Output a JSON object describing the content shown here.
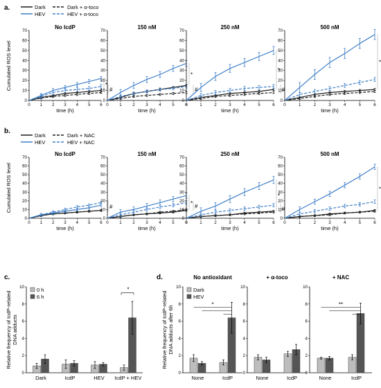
{
  "colors": {
    "dark": "#1a1a1a",
    "hev": "#3f7fc8",
    "bar_light": "#bdbdbd",
    "bar_dark": "#555555"
  },
  "figure": {
    "panels": {
      "a": "a.",
      "b": "b.",
      "c": "c.",
      "d": "d."
    },
    "legend_a": [
      "Dark",
      "Dark + α-toco",
      "HEV",
      "HEV + α-toco"
    ],
    "legend_b": [
      "Dark",
      "Dark + NAC",
      "HEV",
      "HEV + NAC"
    ],
    "legend_c": [
      "0 h",
      "6 h"
    ],
    "legend_d": [
      "Dark",
      "HEV"
    ],
    "ros_ylabel": "Cumulated ROS level",
    "ros_xlabel": "time (h)",
    "c_ylabel": [
      "Relative frequency of IcdP-related",
      "DNA adducts"
    ],
    "d_ylabel": [
      "Relative frequency of IcdP-related",
      "DNA adducts after 6h"
    ],
    "sig_star": "*",
    "sig_double_star": "**",
    "sig_hash": "#"
  },
  "chart_data": [
    {
      "type": "line",
      "row": "a",
      "title": "No IcdP",
      "x": [
        0,
        1,
        2,
        3,
        4,
        5,
        6
      ],
      "xlim": [
        0,
        6
      ],
      "ylim": [
        0,
        70
      ],
      "yticks": [
        0,
        10,
        20,
        30,
        40,
        50,
        60,
        70
      ],
      "series": [
        {
          "name": "Dark",
          "values": [
            0,
            3,
            5,
            7,
            8,
            9,
            10
          ],
          "err": 1,
          "color": "dark",
          "dash": false
        },
        {
          "name": "Dark + α-toco",
          "values": [
            0,
            2.5,
            4,
            5,
            6,
            7,
            8
          ],
          "err": 1,
          "color": "dark",
          "dash": true
        },
        {
          "name": "HEV",
          "values": [
            0,
            5,
            10,
            13,
            16,
            19,
            22
          ],
          "err": 2,
          "color": "hev",
          "dash": false
        },
        {
          "name": "HEV + α-toco",
          "values": [
            0,
            4,
            8,
            10,
            11,
            12,
            14
          ],
          "err": 2,
          "color": "hev",
          "dash": true
        }
      ],
      "annotations": [
        "*",
        "#"
      ]
    },
    {
      "type": "line",
      "row": "a",
      "title": "150 nM",
      "x": [
        0,
        1,
        2,
        3,
        4,
        5,
        6
      ],
      "xlim": [
        0,
        6
      ],
      "ylim": [
        0,
        70
      ],
      "yticks": [
        0,
        10,
        20,
        30,
        40,
        50,
        60,
        70
      ],
      "series": [
        {
          "name": "Dark",
          "values": [
            0,
            3,
            7,
            9,
            11,
            13,
            15
          ],
          "err": 1,
          "color": "dark",
          "dash": false
        },
        {
          "name": "Dark + α-toco",
          "values": [
            0,
            2,
            4,
            5,
            6,
            7,
            8
          ],
          "err": 1,
          "color": "dark",
          "dash": true
        },
        {
          "name": "HEV",
          "values": [
            0,
            8,
            15,
            21,
            26,
            32,
            37
          ],
          "err": 3,
          "color": "hev",
          "dash": false
        },
        {
          "name": "HEV + α-toco",
          "values": [
            0,
            4,
            7,
            9,
            11,
            12,
            14
          ],
          "err": 1.5,
          "color": "hev",
          "dash": true
        }
      ],
      "annotations": [
        "*",
        "#"
      ]
    },
    {
      "type": "line",
      "row": "a",
      "title": "250 nM",
      "x": [
        0,
        1,
        2,
        3,
        4,
        5,
        6
      ],
      "xlim": [
        0,
        6
      ],
      "ylim": [
        0,
        70
      ],
      "yticks": [
        0,
        10,
        20,
        30,
        40,
        50,
        60,
        70
      ],
      "series": [
        {
          "name": "Dark",
          "values": [
            0,
            3,
            5,
            7,
            8,
            9,
            11
          ],
          "err": 1,
          "color": "dark",
          "dash": false
        },
        {
          "name": "Dark + α-toco",
          "values": [
            0,
            2,
            4,
            5,
            6,
            7,
            8
          ],
          "err": 1,
          "color": "dark",
          "dash": true
        },
        {
          "name": "HEV",
          "values": [
            0,
            13,
            24,
            32,
            38,
            44,
            50
          ],
          "err": 4,
          "color": "hev",
          "dash": false
        },
        {
          "name": "HEV + α-toco",
          "values": [
            0,
            5,
            8,
            10,
            12,
            13,
            14
          ],
          "err": 2,
          "color": "hev",
          "dash": true
        }
      ],
      "annotations": [
        "*",
        "#"
      ]
    },
    {
      "type": "line",
      "row": "a",
      "title": "500 nM",
      "x": [
        0,
        1,
        2,
        3,
        4,
        5,
        6
      ],
      "xlim": [
        0,
        6
      ],
      "ylim": [
        0,
        70
      ],
      "yticks": [
        0,
        10,
        20,
        30,
        40,
        50,
        60,
        70
      ],
      "series": [
        {
          "name": "Dark",
          "values": [
            0,
            3,
            6,
            8,
            9,
            10,
            11
          ],
          "err": 1,
          "color": "dark",
          "dash": false
        },
        {
          "name": "Dark + α-toco",
          "values": [
            0,
            2,
            4,
            6,
            7,
            8,
            9
          ],
          "err": 1,
          "color": "dark",
          "dash": true
        },
        {
          "name": "HEV",
          "values": [
            0,
            13,
            26,
            38,
            47,
            57,
            66
          ],
          "err": 5,
          "color": "hev",
          "dash": false
        },
        {
          "name": "HEV + α-toco",
          "values": [
            0,
            6,
            9,
            12,
            15,
            18,
            21
          ],
          "err": 2,
          "color": "hev",
          "dash": true
        }
      ],
      "annotations": [
        "*",
        "#"
      ]
    },
    {
      "type": "line",
      "row": "b",
      "title": "No IcdP",
      "x": [
        0,
        1,
        2,
        3,
        4,
        5,
        6
      ],
      "xlim": [
        0,
        6
      ],
      "ylim": [
        0,
        70
      ],
      "yticks": [
        0,
        10,
        20,
        30,
        40,
        50,
        60,
        70
      ],
      "series": [
        {
          "name": "Dark",
          "values": [
            0,
            3,
            5,
            6,
            7,
            8,
            9
          ],
          "err": 1,
          "color": "dark",
          "dash": false
        },
        {
          "name": "Dark + NAC",
          "values": [
            0,
            3,
            5,
            6,
            7,
            8,
            9
          ],
          "err": 1,
          "color": "dark",
          "dash": true
        },
        {
          "name": "HEV",
          "values": [
            0,
            4,
            6,
            8,
            10,
            12,
            15
          ],
          "err": 1.5,
          "color": "hev",
          "dash": false
        },
        {
          "name": "HEV + NAC",
          "values": [
            0,
            4,
            7,
            10,
            13,
            15,
            18
          ],
          "err": 1.5,
          "color": "hev",
          "dash": true
        }
      ],
      "annotations": [
        "#"
      ]
    },
    {
      "type": "line",
      "row": "b",
      "title": "150 nM",
      "x": [
        0,
        1,
        2,
        3,
        4,
        5,
        6
      ],
      "xlim": [
        0,
        6
      ],
      "ylim": [
        0,
        70
      ],
      "yticks": [
        0,
        10,
        20,
        30,
        40,
        50,
        60,
        70
      ],
      "series": [
        {
          "name": "Dark",
          "values": [
            0,
            2,
            4,
            5,
            6,
            7,
            9
          ],
          "err": 1,
          "color": "dark",
          "dash": false
        },
        {
          "name": "Dark + NAC",
          "values": [
            0,
            2,
            4,
            5,
            7,
            8,
            10
          ],
          "err": 1,
          "color": "dark",
          "dash": true
        },
        {
          "name": "HEV",
          "values": [
            0,
            7,
            10,
            14,
            18,
            22,
            26
          ],
          "err": 3,
          "color": "hev",
          "dash": false
        },
        {
          "name": "HEV + NAC",
          "values": [
            0,
            4,
            7,
            10,
            13,
            15,
            18
          ],
          "err": 2,
          "color": "hev",
          "dash": true
        }
      ],
      "annotations": [
        "*",
        "#"
      ]
    },
    {
      "type": "line",
      "row": "b",
      "title": "250 nM",
      "x": [
        0,
        1,
        2,
        3,
        4,
        5,
        6
      ],
      "xlim": [
        0,
        6
      ],
      "ylim": [
        0,
        70
      ],
      "yticks": [
        0,
        10,
        20,
        30,
        40,
        50,
        60,
        70
      ],
      "series": [
        {
          "name": "Dark",
          "values": [
            0,
            2,
            3,
            4,
            6,
            7,
            8
          ],
          "err": 1,
          "color": "dark",
          "dash": false
        },
        {
          "name": "Dark + NAC",
          "values": [
            0,
            2,
            3,
            4,
            5,
            6,
            7
          ],
          "err": 1,
          "color": "dark",
          "dash": true
        },
        {
          "name": "HEV",
          "values": [
            0,
            8,
            14,
            22,
            30,
            37,
            44
          ],
          "err": 4,
          "color": "hev",
          "dash": false
        },
        {
          "name": "HEV + NAC",
          "values": [
            0,
            4,
            7,
            9,
            11,
            13,
            15
          ],
          "err": 2,
          "color": "hev",
          "dash": true
        }
      ],
      "annotations": [
        "*",
        "#"
      ]
    },
    {
      "type": "line",
      "row": "b",
      "title": "500 nM",
      "x": [
        0,
        1,
        2,
        3,
        4,
        5,
        6
      ],
      "xlim": [
        0,
        6
      ],
      "ylim": [
        0,
        70
      ],
      "yticks": [
        0,
        10,
        20,
        30,
        40,
        50,
        60,
        70
      ],
      "series": [
        {
          "name": "Dark",
          "values": [
            0,
            2,
            3,
            5,
            6,
            7,
            9
          ],
          "err": 1,
          "color": "dark",
          "dash": false
        },
        {
          "name": "Dark + NAC",
          "values": [
            0,
            2,
            3,
            4,
            6,
            7,
            8
          ],
          "err": 1,
          "color": "dark",
          "dash": true
        },
        {
          "name": "HEV",
          "values": [
            0,
            10,
            19,
            28,
            38,
            48,
            59
          ],
          "err": 3,
          "color": "hev",
          "dash": false
        },
        {
          "name": "HEV + NAC",
          "values": [
            0,
            5,
            8,
            11,
            14,
            16,
            19
          ],
          "err": 2,
          "color": "hev",
          "dash": true
        }
      ],
      "annotations": [
        "*",
        "#"
      ]
    },
    {
      "type": "bar",
      "row": "c",
      "categories": [
        "Dark",
        "IcdP",
        "HEV",
        "IcdP + HEV"
      ],
      "ylim": [
        0,
        10
      ],
      "yticks": [
        0,
        2,
        4,
        6,
        8,
        10
      ],
      "series": [
        {
          "name": "0 h",
          "values": [
            0.8,
            1.0,
            0.9,
            0.6
          ],
          "err": [
            0.3,
            0.5,
            0.4,
            0.3
          ]
        },
        {
          "name": "6 h",
          "values": [
            1.6,
            1.1,
            1.0,
            6.4
          ],
          "err": [
            0.5,
            0.3,
            0.2,
            1.9
          ]
        }
      ],
      "annotations": [
        "*"
      ]
    },
    {
      "type": "bar",
      "row": "d",
      "title": "No antioxidant",
      "categories": [
        "None",
        "IcdP"
      ],
      "ylim": [
        0,
        10
      ],
      "yticks": [
        0,
        2,
        4,
        6,
        8,
        10
      ],
      "series": [
        {
          "name": "Dark",
          "values": [
            1.7,
            1.2
          ],
          "err": [
            0.4,
            0.3
          ]
        },
        {
          "name": "HEV",
          "values": [
            1.1,
            6.4
          ],
          "err": [
            0.2,
            1.8
          ]
        }
      ],
      "annotations": [
        "*"
      ]
    },
    {
      "type": "bar",
      "row": "d",
      "title": "+ α-toco",
      "categories": [
        "None",
        "IcdP"
      ],
      "ylim": [
        0,
        10
      ],
      "yticks": [
        0,
        2,
        4,
        6,
        8,
        10
      ],
      "series": [
        {
          "name": "Dark",
          "values": [
            1.8,
            2.2
          ],
          "err": [
            0.3,
            0.3
          ]
        },
        {
          "name": "HEV",
          "values": [
            1.5,
            2.7
          ],
          "err": [
            0.3,
            0.6
          ]
        }
      ],
      "annotations": []
    },
    {
      "type": "bar",
      "row": "d",
      "title": "+ NAC",
      "categories": [
        "None",
        "IcdP"
      ],
      "ylim": [
        0,
        10
      ],
      "yticks": [
        0,
        2,
        4,
        6,
        8,
        10
      ],
      "series": [
        {
          "name": "Dark",
          "values": [
            1.7,
            1.8
          ],
          "err": [
            0.1,
            0.3
          ]
        },
        {
          "name": "HEV",
          "values": [
            1.7,
            6.9
          ],
          "err": [
            0.2,
            1.2
          ]
        }
      ],
      "annotations": [
        "**"
      ]
    }
  ]
}
